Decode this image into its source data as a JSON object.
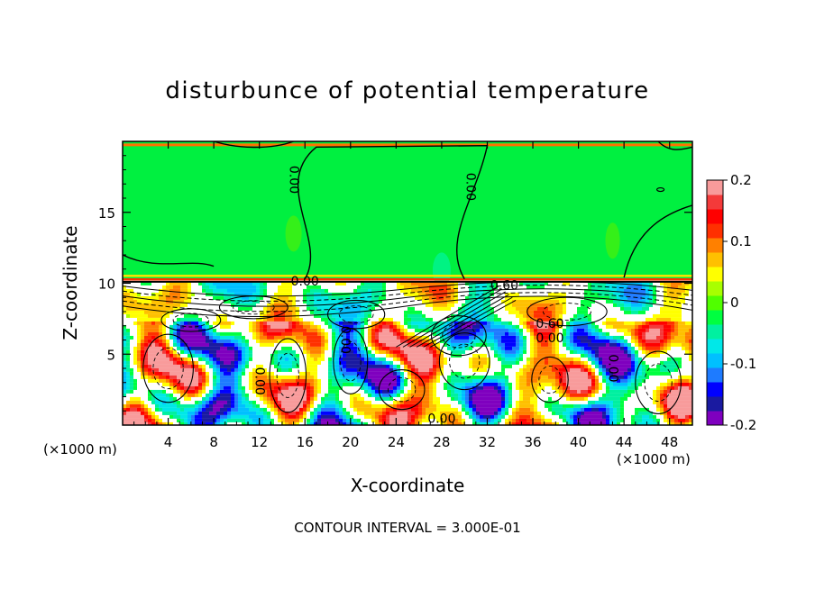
{
  "chart_data": {
    "type": "heatmap",
    "title": "disturbunce of potential temperature",
    "xlabel": "X-coordinate",
    "ylabel": "Z-coordinate",
    "x_unit_left": "(×1000 m)",
    "x_unit_right": "(×1000 m)",
    "xlim": [
      0,
      50
    ],
    "ylim": [
      0,
      20
    ],
    "xticks": [
      4,
      8,
      12,
      16,
      20,
      24,
      28,
      32,
      36,
      40,
      44,
      48
    ],
    "yticks": [
      5,
      10,
      15
    ],
    "colorbar": {
      "ticks": [
        "0.2",
        "0.1",
        "0",
        "-0.1",
        "-0.2"
      ],
      "tick_values": [
        0.2,
        0.1,
        0,
        -0.1,
        -0.2
      ],
      "range": [
        -0.2,
        0.2
      ],
      "colors": [
        "#7f00bf",
        "#1a1aa0",
        "#0000ff",
        "#1e7bff",
        "#00c0ff",
        "#00e8e8",
        "#00f0a0",
        "#00ff40",
        "#50ff00",
        "#a8ff00",
        "#ffff00",
        "#ffc000",
        "#ff8000",
        "#ff3000",
        "#ff0000",
        "#f43a3a",
        "#f89b9b"
      ]
    },
    "contour_labels": [
      {
        "text": "0.00",
        "x": 15,
        "z": 17.3
      },
      {
        "text": "0.00",
        "x": 30.5,
        "z": 16.8
      },
      {
        "text": "0.00",
        "x": 16,
        "z": 10.1
      },
      {
        "text": "0.60",
        "x": 33.5,
        "z": 9.8
      },
      {
        "text": "0.00",
        "x": 19.5,
        "z": 6.0
      },
      {
        "text": "0.60",
        "x": 37.5,
        "z": 7.1
      },
      {
        "text": "0.00",
        "x": 37.5,
        "z": 6.1
      },
      {
        "text": "0.00",
        "x": 12,
        "z": 3.1
      },
      {
        "text": "0.00",
        "x": 43,
        "z": 4.0
      },
      {
        "text": "0.00",
        "x": 28,
        "z": 0.4
      }
    ],
    "grid": false,
    "legend": "colorbar-right"
  },
  "footer": {
    "contour_interval": "CONTOUR INTERVAL = 3.000E-01"
  }
}
